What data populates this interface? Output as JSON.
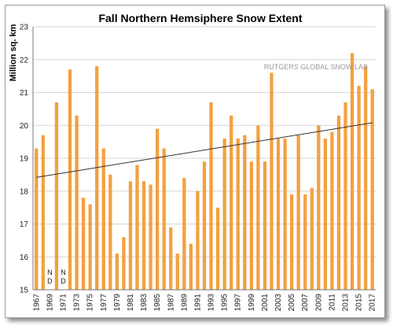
{
  "chart_data": {
    "type": "bar",
    "title": "Fall Northern Hemsiphere Snow Extent",
    "ylabel": "Million sq. km",
    "xlabel": "",
    "watermark": "RUTGERS GLOBAL SNOW LAB",
    "missing_label": [
      "N",
      "D"
    ],
    "ylim": [
      15,
      23
    ],
    "yticks": [
      "15",
      "16",
      "17",
      "18",
      "19",
      "20",
      "21",
      "22",
      "23"
    ],
    "x_tick_labels": [
      "1967",
      "1969",
      "1971",
      "1973",
      "1975",
      "1977",
      "1979",
      "1981",
      "1983",
      "1985",
      "1987",
      "1989",
      "1991",
      "1993",
      "1995",
      "1997",
      "1999",
      "2001",
      "2003",
      "2005",
      "2007",
      "2009",
      "2011",
      "2013",
      "2015",
      "2017"
    ],
    "categories": [
      "1967",
      "1968",
      "1969",
      "1970",
      "1971",
      "1972",
      "1973",
      "1974",
      "1975",
      "1976",
      "1977",
      "1978",
      "1979",
      "1980",
      "1981",
      "1982",
      "1983",
      "1984",
      "1985",
      "1986",
      "1987",
      "1988",
      "1989",
      "1990",
      "1991",
      "1992",
      "1993",
      "1994",
      "1995",
      "1996",
      "1997",
      "1998",
      "1999",
      "2000",
      "2001",
      "2002",
      "2003",
      "2004",
      "2005",
      "2006",
      "2007",
      "2008",
      "2009",
      "2010",
      "2011",
      "2012",
      "2013",
      "2014",
      "2015",
      "2016",
      "2017"
    ],
    "values": [
      19.3,
      19.7,
      null,
      20.7,
      null,
      21.7,
      20.3,
      17.8,
      17.6,
      21.8,
      19.3,
      18.5,
      16.1,
      16.6,
      18.3,
      18.8,
      18.3,
      18.2,
      19.9,
      19.3,
      16.9,
      16.1,
      18.4,
      16.4,
      18.0,
      18.9,
      20.7,
      17.5,
      19.6,
      20.3,
      19.6,
      19.7,
      18.9,
      20.0,
      18.9,
      21.6,
      19.6,
      19.6,
      17.9,
      19.7,
      17.9,
      18.1,
      20.0,
      19.6,
      19.8,
      20.3,
      20.7,
      22.2,
      21.2,
      21.8,
      21.1
    ],
    "trend": {
      "start_value": 18.42,
      "end_value": 20.08
    },
    "grid": true,
    "colors": {
      "bar": "#f4a040",
      "trend": "#333333",
      "grid": "#d6d6d6"
    }
  }
}
